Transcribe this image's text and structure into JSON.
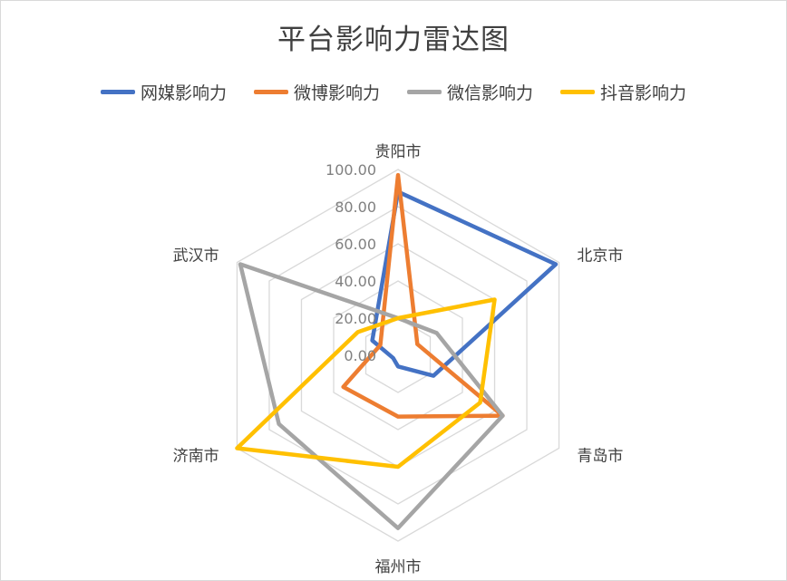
{
  "chart_data": {
    "type": "radar",
    "title": "平台影响力雷达图",
    "categories": [
      "贵阳市",
      "北京市",
      "青岛市",
      "福州市",
      "济南市",
      "武汉市"
    ],
    "rlim": [
      0,
      100
    ],
    "ticks": [
      "0.00",
      "20.00",
      "40.00",
      "60.00",
      "80.00",
      "100.00"
    ],
    "grid": true,
    "legend_position": "top",
    "series": [
      {
        "name": "网媒影响力",
        "color": "#4472C4",
        "values": [
          88,
          98,
          22,
          6,
          3,
          16
        ]
      },
      {
        "name": "微博影响力",
        "color": "#ED7D31",
        "values": [
          97,
          12,
          65,
          33,
          34,
          11
        ]
      },
      {
        "name": "微信影响力",
        "color": "#A5A5A5",
        "values": [
          20,
          24,
          65,
          93,
          74,
          98
        ]
      },
      {
        "name": "抖音影响力",
        "color": "#FFC000",
        "values": [
          20,
          60,
          51,
          60,
          100,
          25
        ]
      }
    ]
  }
}
